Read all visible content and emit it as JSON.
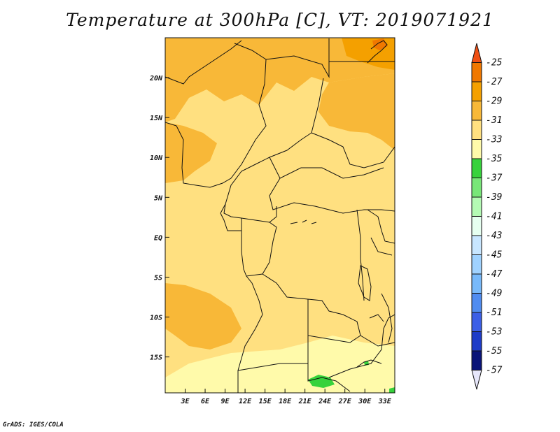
{
  "title": "Temperature at 300hPa [C], VT: 2019071921",
  "credit": "GrADS: IGES/COLA",
  "map": {
    "lon_range": [
      0,
      34.5
    ],
    "lat_range": [
      -19.5,
      25
    ],
    "lon_ticks": [
      "3E",
      "6E",
      "9E",
      "12E",
      "15E",
      "18E",
      "21E",
      "24E",
      "27E",
      "30E",
      "33E"
    ],
    "lat_ticks": [
      "20N",
      "15N",
      "10N",
      "5N",
      "EQ",
      "5S",
      "10S",
      "15S"
    ],
    "background_color": "#FFE080"
  },
  "colorbar": {
    "labels": [
      "-25",
      "-27",
      "-29",
      "-31",
      "-33",
      "-35",
      "-37",
      "-39",
      "-41",
      "-43",
      "-45",
      "-47",
      "-49",
      "-51",
      "-53",
      "-55",
      "-57"
    ],
    "colors": [
      "#f05014",
      "#f07800",
      "#f4a000",
      "#f8b838",
      "#ffe080",
      "#fffaaa",
      "#37d23c",
      "#78e678",
      "#b4fab4",
      "#e6fff0",
      "#c8e6ff",
      "#a0d2ff",
      "#78b9fa",
      "#508cf0",
      "#3c5fe6",
      "#1e3cc8",
      "#0a1478",
      "#e6e6fa"
    ]
  },
  "regions": [
    {
      "name": "warm-29-north",
      "color": "#f8b838"
    },
    {
      "name": "warm-29-ne",
      "color": "#f8b838"
    },
    {
      "name": "warm-27-ne-corner",
      "color": "#f4a000"
    },
    {
      "name": "warm-25-ne-spot",
      "color": "#f07800"
    },
    {
      "name": "warm-29-west-coast",
      "color": "#f8b838"
    },
    {
      "name": "warm-29-atlantic",
      "color": "#f8b838"
    },
    {
      "name": "cool-35-south",
      "color": "#fffaaa"
    },
    {
      "name": "cold-37-patch",
      "color": "#37d23c"
    }
  ]
}
